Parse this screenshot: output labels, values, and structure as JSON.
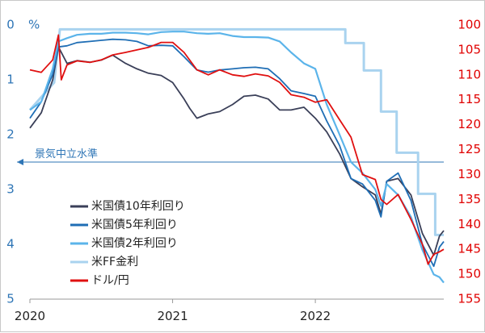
{
  "chart_data": {
    "type": "line",
    "left_unit_label": "%",
    "left_axis": {
      "min": 0,
      "max": 5,
      "inverted": true,
      "ticks": [
        "0",
        "1",
        "2",
        "3",
        "4",
        "5"
      ],
      "color": "#2e75b6"
    },
    "right_axis": {
      "min": 100,
      "max": 155,
      "inverted": true,
      "ticks": [
        "100",
        "105",
        "110",
        "115",
        "120",
        "125",
        "130",
        "135",
        "140",
        "145",
        "150",
        "155"
      ],
      "color": "#e00000"
    },
    "x_axis": {
      "min": 2020.0,
      "max": 2022.9,
      "ticks": [
        "2020",
        "2021",
        "2022"
      ]
    },
    "reference_line": {
      "label": "景気中立水準",
      "value": 2.5,
      "axis": "left",
      "color": "#2e75b6"
    },
    "legend": {
      "placement": "lower-left"
    },
    "series": [
      {
        "name": "米国債10年利回り",
        "axis": "left",
        "color": "#3a3f58",
        "step": false,
        "points": [
          [
            2020.0,
            1.88
          ],
          [
            2020.08,
            1.6
          ],
          [
            2020.16,
            1.0
          ],
          [
            2020.2,
            0.4
          ],
          [
            2020.26,
            0.7
          ],
          [
            2020.33,
            0.65
          ],
          [
            2020.42,
            0.68
          ],
          [
            2020.5,
            0.64
          ],
          [
            2020.58,
            0.55
          ],
          [
            2020.67,
            0.7
          ],
          [
            2020.75,
            0.8
          ],
          [
            2020.83,
            0.88
          ],
          [
            2020.92,
            0.92
          ],
          [
            2021.0,
            1.05
          ],
          [
            2021.08,
            1.35
          ],
          [
            2021.12,
            1.52
          ],
          [
            2021.17,
            1.7
          ],
          [
            2021.25,
            1.62
          ],
          [
            2021.33,
            1.58
          ],
          [
            2021.42,
            1.45
          ],
          [
            2021.5,
            1.3
          ],
          [
            2021.58,
            1.28
          ],
          [
            2021.67,
            1.35
          ],
          [
            2021.75,
            1.55
          ],
          [
            2021.83,
            1.55
          ],
          [
            2021.92,
            1.5
          ],
          [
            2022.0,
            1.7
          ],
          [
            2022.08,
            1.95
          ],
          [
            2022.17,
            2.35
          ],
          [
            2022.25,
            2.8
          ],
          [
            2022.33,
            2.95
          ],
          [
            2022.42,
            3.1
          ],
          [
            2022.46,
            3.45
          ],
          [
            2022.5,
            2.85
          ],
          [
            2022.58,
            2.8
          ],
          [
            2022.67,
            3.1
          ],
          [
            2022.75,
            3.8
          ],
          [
            2022.83,
            4.2
          ],
          [
            2022.87,
            3.85
          ],
          [
            2022.9,
            3.75
          ]
        ]
      },
      {
        "name": "米国債5年利回り",
        "axis": "left",
        "color": "#1f6eb5",
        "step": false,
        "points": [
          [
            2020.0,
            1.7
          ],
          [
            2020.08,
            1.4
          ],
          [
            2020.16,
            0.9
          ],
          [
            2020.2,
            0.4
          ],
          [
            2020.26,
            0.38
          ],
          [
            2020.33,
            0.32
          ],
          [
            2020.42,
            0.3
          ],
          [
            2020.5,
            0.28
          ],
          [
            2020.58,
            0.26
          ],
          [
            2020.67,
            0.27
          ],
          [
            2020.75,
            0.3
          ],
          [
            2020.83,
            0.38
          ],
          [
            2020.92,
            0.37
          ],
          [
            2021.0,
            0.38
          ],
          [
            2021.08,
            0.58
          ],
          [
            2021.17,
            0.82
          ],
          [
            2021.25,
            0.86
          ],
          [
            2021.33,
            0.82
          ],
          [
            2021.42,
            0.8
          ],
          [
            2021.5,
            0.78
          ],
          [
            2021.58,
            0.77
          ],
          [
            2021.67,
            0.8
          ],
          [
            2021.75,
            0.98
          ],
          [
            2021.83,
            1.2
          ],
          [
            2021.92,
            1.25
          ],
          [
            2022.0,
            1.3
          ],
          [
            2022.08,
            1.75
          ],
          [
            2022.17,
            2.2
          ],
          [
            2022.25,
            2.8
          ],
          [
            2022.33,
            2.9
          ],
          [
            2022.42,
            3.2
          ],
          [
            2022.46,
            3.5
          ],
          [
            2022.5,
            2.85
          ],
          [
            2022.58,
            2.7
          ],
          [
            2022.67,
            3.2
          ],
          [
            2022.75,
            4.0
          ],
          [
            2022.83,
            4.4
          ],
          [
            2022.87,
            4.05
          ],
          [
            2022.9,
            3.95
          ]
        ]
      },
      {
        "name": "米国債2年利回り",
        "axis": "left",
        "color": "#5bb4ea",
        "step": false,
        "points": [
          [
            2020.0,
            1.55
          ],
          [
            2020.08,
            1.4
          ],
          [
            2020.16,
            0.8
          ],
          [
            2020.2,
            0.3
          ],
          [
            2020.26,
            0.24
          ],
          [
            2020.33,
            0.18
          ],
          [
            2020.42,
            0.16
          ],
          [
            2020.5,
            0.16
          ],
          [
            2020.58,
            0.14
          ],
          [
            2020.67,
            0.14
          ],
          [
            2020.75,
            0.15
          ],
          [
            2020.83,
            0.17
          ],
          [
            2020.92,
            0.13
          ],
          [
            2021.0,
            0.12
          ],
          [
            2021.08,
            0.12
          ],
          [
            2021.17,
            0.15
          ],
          [
            2021.25,
            0.16
          ],
          [
            2021.33,
            0.15
          ],
          [
            2021.42,
            0.2
          ],
          [
            2021.5,
            0.22
          ],
          [
            2021.58,
            0.22
          ],
          [
            2021.67,
            0.23
          ],
          [
            2021.75,
            0.3
          ],
          [
            2021.83,
            0.5
          ],
          [
            2021.92,
            0.7
          ],
          [
            2022.0,
            0.8
          ],
          [
            2022.08,
            1.45
          ],
          [
            2022.17,
            2.0
          ],
          [
            2022.25,
            2.5
          ],
          [
            2022.33,
            2.7
          ],
          [
            2022.42,
            3.0
          ],
          [
            2022.46,
            3.3
          ],
          [
            2022.5,
            2.9
          ],
          [
            2022.58,
            3.1
          ],
          [
            2022.67,
            3.5
          ],
          [
            2022.75,
            4.1
          ],
          [
            2022.83,
            4.55
          ],
          [
            2022.87,
            4.6
          ],
          [
            2022.9,
            4.7
          ]
        ]
      },
      {
        "name": "米FF金利",
        "axis": "left",
        "color": "#a9d3ef",
        "step": true,
        "points": [
          [
            2020.0,
            1.55
          ],
          [
            2020.17,
            1.05
          ],
          [
            2020.21,
            0.08
          ],
          [
            2022.21,
            0.08
          ],
          [
            2022.21,
            0.33
          ],
          [
            2022.34,
            0.33
          ],
          [
            2022.34,
            0.83
          ],
          [
            2022.46,
            0.83
          ],
          [
            2022.46,
            1.58
          ],
          [
            2022.57,
            1.58
          ],
          [
            2022.57,
            2.33
          ],
          [
            2022.72,
            2.33
          ],
          [
            2022.72,
            3.08
          ],
          [
            2022.84,
            3.08
          ],
          [
            2022.84,
            3.83
          ],
          [
            2022.9,
            3.83
          ]
        ]
      },
      {
        "name": "ドル/円",
        "axis": "right",
        "color": "#e01010",
        "step": false,
        "points": [
          [
            2020.0,
            109.0
          ],
          [
            2020.08,
            109.5
          ],
          [
            2020.16,
            107.0
          ],
          [
            2020.2,
            102.0
          ],
          [
            2020.22,
            111.0
          ],
          [
            2020.26,
            108.0
          ],
          [
            2020.33,
            107.2
          ],
          [
            2020.42,
            107.5
          ],
          [
            2020.5,
            107.0
          ],
          [
            2020.58,
            106.0
          ],
          [
            2020.67,
            105.5
          ],
          [
            2020.75,
            105.0
          ],
          [
            2020.83,
            104.5
          ],
          [
            2020.92,
            103.5
          ],
          [
            2021.0,
            103.5
          ],
          [
            2021.08,
            105.5
          ],
          [
            2021.17,
            109.0
          ],
          [
            2021.25,
            110.0
          ],
          [
            2021.33,
            109.0
          ],
          [
            2021.42,
            110.0
          ],
          [
            2021.5,
            110.3
          ],
          [
            2021.58,
            109.8
          ],
          [
            2021.67,
            110.2
          ],
          [
            2021.75,
            111.5
          ],
          [
            2021.83,
            114.0
          ],
          [
            2021.92,
            114.5
          ],
          [
            2022.0,
            115.5
          ],
          [
            2022.08,
            115.0
          ],
          [
            2022.17,
            119.0
          ],
          [
            2022.25,
            122.5
          ],
          [
            2022.33,
            130.0
          ],
          [
            2022.42,
            131.0
          ],
          [
            2022.46,
            135.0
          ],
          [
            2022.5,
            136.0
          ],
          [
            2022.58,
            134.0
          ],
          [
            2022.67,
            139.0
          ],
          [
            2022.75,
            144.0
          ],
          [
            2022.79,
            148.0
          ],
          [
            2022.83,
            146.0
          ],
          [
            2022.87,
            145.5
          ],
          [
            2022.9,
            145.0
          ]
        ]
      }
    ]
  }
}
